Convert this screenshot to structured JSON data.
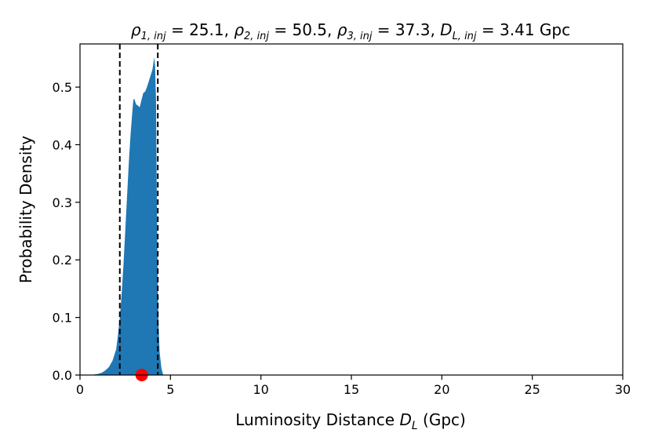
{
  "chart_data": {
    "type": "area",
    "title_parts": {
      "rho1_sym": "ρ",
      "rho1_sub": "1, inj",
      "rho1_val": " = 25.1, ",
      "rho2_sym": "ρ",
      "rho2_sub": "2, inj",
      "rho2_val": " = 50.5, ",
      "rho3_sym": "ρ",
      "rho3_sub": "3, inj",
      "rho3_val": " = 37.3, ",
      "dl_sym": "D",
      "dl_sub": "L, inj",
      "dl_val": " = 3.41 Gpc"
    },
    "xlabel_parts": {
      "text": "Luminosity Distance ",
      "sym": "D",
      "sub": "L",
      "unit": " (Gpc)"
    },
    "ylabel": "Probability Density",
    "xlim": [
      0,
      30
    ],
    "ylim": [
      0,
      0.575
    ],
    "xticks": [
      0,
      5,
      10,
      15,
      20,
      25,
      30
    ],
    "xtick_labels": [
      "0",
      "5",
      "10",
      "15",
      "20",
      "25",
      "30"
    ],
    "yticks": [
      0.0,
      0.1,
      0.2,
      0.3,
      0.4,
      0.5
    ],
    "ytick_labels": [
      "0.0",
      "0.1",
      "0.2",
      "0.3",
      "0.4",
      "0.5"
    ],
    "fill_color": "#1f77b4",
    "series": [
      {
        "x": [
          0.6,
          0.8,
          1.0,
          1.2,
          1.4,
          1.6,
          1.8,
          2.0,
          2.1,
          2.2,
          2.3,
          2.4,
          2.5,
          2.6,
          2.7,
          2.8,
          2.9,
          2.95,
          3.0,
          3.05,
          3.1,
          3.2,
          3.3,
          3.4,
          3.5,
          3.6,
          3.7,
          3.8,
          3.9,
          4.0,
          4.05,
          4.1,
          4.15,
          4.2,
          4.25,
          4.3,
          4.35,
          4.4,
          4.5,
          4.6
        ],
        "y": [
          0.0,
          0.001,
          0.002,
          0.004,
          0.008,
          0.014,
          0.025,
          0.045,
          0.07,
          0.1,
          0.14,
          0.19,
          0.25,
          0.31,
          0.37,
          0.42,
          0.46,
          0.478,
          0.48,
          0.475,
          0.47,
          0.468,
          0.465,
          0.478,
          0.49,
          0.492,
          0.5,
          0.51,
          0.52,
          0.53,
          0.54,
          0.552,
          0.538,
          0.48,
          0.3,
          0.15,
          0.08,
          0.04,
          0.012,
          0.0
        ]
      }
    ],
    "vlines": {
      "x": [
        2.2,
        4.3
      ],
      "style": "dashed",
      "color": "#000000"
    },
    "injection_marker": {
      "x": 3.41,
      "y": 0.0,
      "color": "#ff0000"
    }
  }
}
